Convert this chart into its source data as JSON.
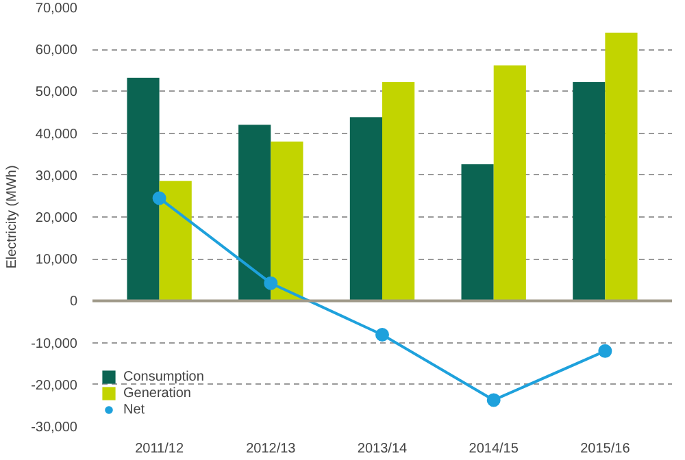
{
  "chart_data": {
    "type": "bar",
    "ylabel": "Electricity (MWh)",
    "categories": [
      "2011/12",
      "2012/13",
      "2013/14",
      "2014/15",
      "2015/16"
    ],
    "series": [
      {
        "name": "Consumption",
        "color": "#0b6452",
        "values": [
          53200,
          42000,
          43800,
          32600,
          52200
        ]
      },
      {
        "name": "Generation",
        "color": "#c2d400",
        "values": [
          28600,
          38000,
          52200,
          56200,
          64000
        ]
      },
      {
        "name": "Net",
        "color": "#1ea1dc",
        "type": "line",
        "marker": "circle",
        "values": [
          24500,
          4200,
          -8100,
          -23700,
          -12000
        ]
      }
    ],
    "ylim": [
      -30000,
      70000
    ],
    "yticks": [
      {
        "value": -30000,
        "label": "-30,000"
      },
      {
        "value": -20000,
        "label": "-20,000"
      },
      {
        "value": -10000,
        "label": "-10,000"
      },
      0,
      {
        "value": 10000,
        "label": "10,000"
      },
      {
        "value": 20000,
        "label": "20,000"
      },
      {
        "value": 30000,
        "label": "30,000"
      },
      {
        "value": 40000,
        "label": "40,000"
      },
      {
        "value": 50000,
        "label": "50,000"
      },
      {
        "value": 60000,
        "label": "60,000"
      },
      {
        "value": 70000,
        "label": "70,000"
      }
    ],
    "grid": "y",
    "legend": "bottom left",
    "line_style": "solid"
  }
}
